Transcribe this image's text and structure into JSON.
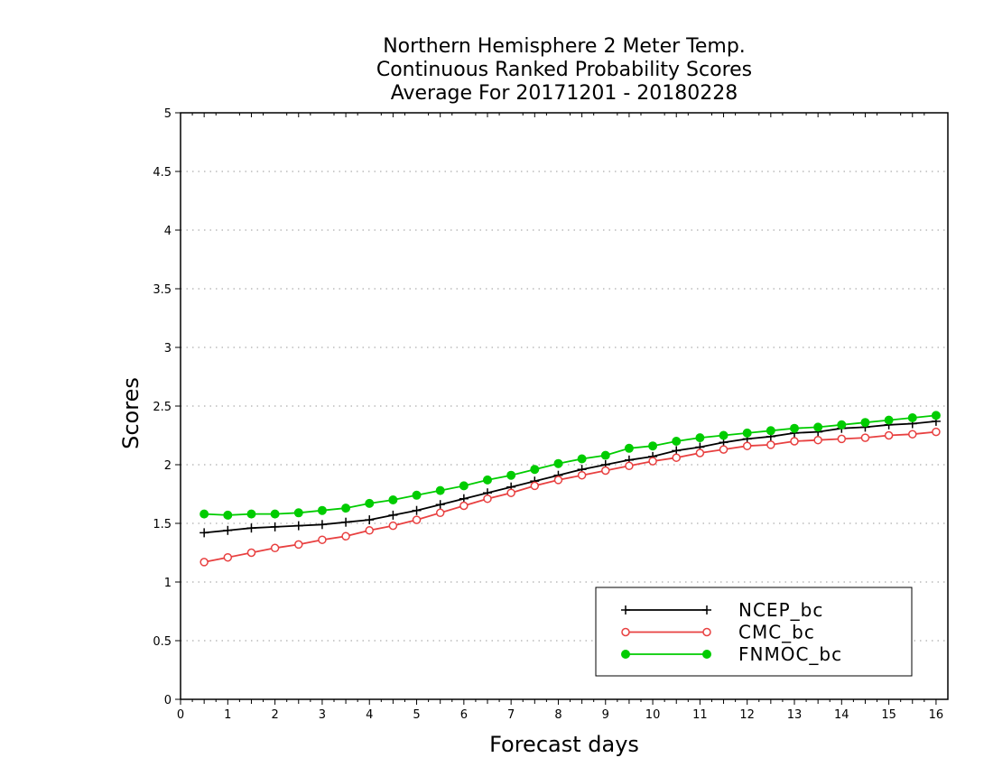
{
  "chart_data": {
    "type": "line",
    "title": [
      "Northern Hemisphere 2 Meter Temp.",
      "Continuous Ranked Probability Scores",
      "Average For 20171201 - 20180228"
    ],
    "xlabel": "Forecast days",
    "ylabel": "Scores",
    "xlim": [
      0,
      16.25
    ],
    "ylim": [
      0,
      5
    ],
    "x_ticks": [
      "0",
      "1",
      "2",
      "3",
      "4",
      "5",
      "6",
      "7",
      "8",
      "9",
      "10",
      "11",
      "12",
      "13",
      "14",
      "15",
      "16"
    ],
    "y_ticks": [
      "0",
      "0.5",
      "1",
      "1.5",
      "2",
      "2.5",
      "3",
      "3.5",
      "4",
      "4.5",
      "5"
    ],
    "grid": "horizontal dotted",
    "legend_position": "bottom-right",
    "x": [
      0.5,
      1,
      1.5,
      2,
      2.5,
      3,
      3.5,
      4,
      4.5,
      5,
      5.5,
      6,
      6.5,
      7,
      7.5,
      8,
      8.5,
      9,
      9.5,
      10,
      10.5,
      11,
      11.5,
      12,
      12.5,
      13,
      13.5,
      14,
      14.5,
      15,
      15.5,
      16
    ],
    "series": [
      {
        "name": "NCEP_bc",
        "color": "#000000",
        "marker": "plus",
        "values": [
          1.42,
          1.44,
          1.46,
          1.47,
          1.48,
          1.49,
          1.51,
          1.53,
          1.57,
          1.61,
          1.66,
          1.71,
          1.76,
          1.81,
          1.86,
          1.91,
          1.96,
          2.0,
          2.04,
          2.07,
          2.12,
          2.15,
          2.19,
          2.22,
          2.24,
          2.27,
          2.28,
          2.31,
          2.32,
          2.34,
          2.35,
          2.37
        ]
      },
      {
        "name": "CMC_bc",
        "color": "#e84040",
        "marker": "open-circle",
        "values": [
          1.17,
          1.21,
          1.25,
          1.29,
          1.32,
          1.36,
          1.39,
          1.44,
          1.48,
          1.53,
          1.59,
          1.65,
          1.71,
          1.76,
          1.82,
          1.87,
          1.91,
          1.95,
          1.99,
          2.03,
          2.06,
          2.1,
          2.13,
          2.16,
          2.17,
          2.2,
          2.21,
          2.22,
          2.23,
          2.25,
          2.26,
          2.28
        ]
      },
      {
        "name": "FNMOC_bc",
        "color": "#00cc00",
        "marker": "filled-circle",
        "values": [
          1.58,
          1.57,
          1.58,
          1.58,
          1.59,
          1.61,
          1.63,
          1.67,
          1.7,
          1.74,
          1.78,
          1.82,
          1.87,
          1.91,
          1.96,
          2.01,
          2.05,
          2.08,
          2.14,
          2.16,
          2.2,
          2.23,
          2.25,
          2.27,
          2.29,
          2.31,
          2.32,
          2.34,
          2.36,
          2.38,
          2.4,
          2.42
        ]
      }
    ]
  }
}
